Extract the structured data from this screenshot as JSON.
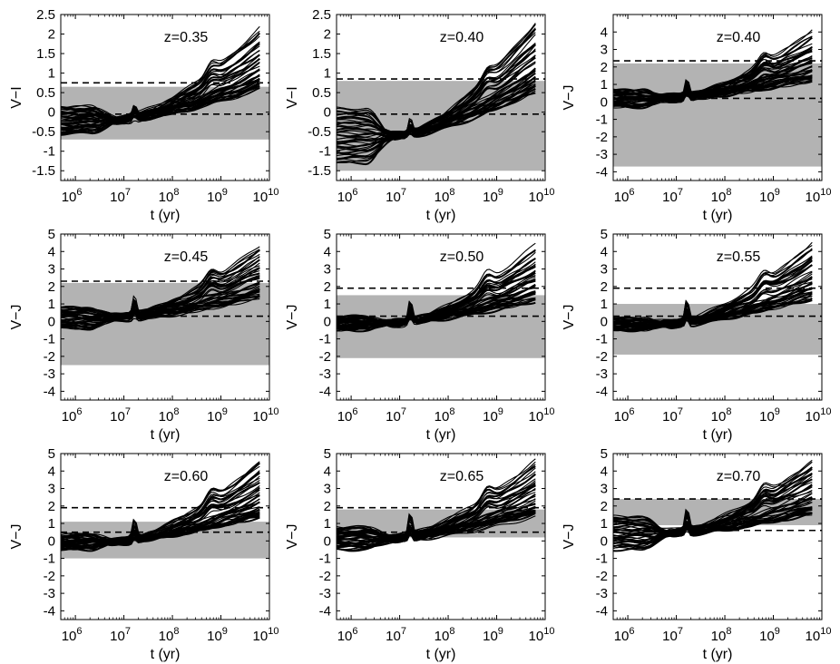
{
  "figure": {
    "description_text": ""
  },
  "chart_data": [
    {
      "type": "line",
      "title": "z=0.35",
      "xlabel": "t (yr)",
      "ylabel": "V−I",
      "xscale": "log",
      "xlim": [
        500000,
        10000000000
      ],
      "ylim": [
        -1.75,
        2.5
      ],
      "yticks": [
        -1.5,
        -1,
        -0.5,
        0,
        0.5,
        1,
        1.5,
        2,
        2.5
      ],
      "ytick_labels": [
        "-1.5",
        "-1",
        "-0.5",
        "0",
        "0.5",
        "1",
        "1.5",
        "2",
        "2.5"
      ],
      "xticks": [
        {
          "b": "10",
          "e": "6"
        },
        {
          "b": "10",
          "e": "7"
        },
        {
          "b": "10",
          "e": "8"
        },
        {
          "b": "10",
          "e": "9"
        },
        {
          "b": "10",
          "e": "10"
        }
      ],
      "band": [
        -0.7,
        0.65
      ],
      "dashed_lines": [
        0.75,
        -0.05
      ],
      "track_start": [
        -0.55,
        0.15
      ],
      "track_end": [
        0.3,
        2.25
      ],
      "bump_height": 0.35,
      "n_tracks": 40
    },
    {
      "type": "line",
      "title": "z=0.40",
      "xlabel": "t (yr)",
      "ylabel": "V−I",
      "xscale": "log",
      "xlim": [
        500000,
        10000000000
      ],
      "ylim": [
        -1.75,
        2.5
      ],
      "yticks": [
        -1.5,
        -1,
        -0.5,
        0,
        0.5,
        1,
        1.5,
        2,
        2.5
      ],
      "ytick_labels": [
        "-1.5",
        "-1",
        "-0.5",
        "0",
        "0.5",
        "1",
        "1.5",
        "2",
        "2.5"
      ],
      "xticks": [
        {
          "b": "10",
          "e": "6"
        },
        {
          "b": "10",
          "e": "7"
        },
        {
          "b": "10",
          "e": "8"
        },
        {
          "b": "10",
          "e": "9"
        },
        {
          "b": "10",
          "e": "10"
        }
      ],
      "band": [
        -1.5,
        0.8
      ],
      "dashed_lines": [
        0.85,
        -0.05
      ],
      "track_start": [
        -1.3,
        0.1
      ],
      "track_end": [
        0.3,
        2.4
      ],
      "bump_height": 0.35,
      "n_tracks": 40
    },
    {
      "type": "line",
      "title": "z=0.40",
      "xlabel": "t (yr)",
      "ylabel": "V−J",
      "xscale": "log",
      "xlim": [
        500000,
        10000000000
      ],
      "ylim": [
        -4.5,
        5
      ],
      "yticks": [
        -4,
        -3,
        -2,
        -1,
        0,
        1,
        2,
        3,
        4
      ],
      "ytick_labels": [
        "-4",
        "-3",
        "-2",
        "-1",
        "0",
        "1",
        "2",
        "3",
        "4"
      ],
      "xticks": [
        {
          "b": "10",
          "e": "6"
        },
        {
          "b": "10",
          "e": "7"
        },
        {
          "b": "10",
          "e": "8"
        },
        {
          "b": "10",
          "e": "9"
        },
        {
          "b": "10",
          "e": "10"
        }
      ],
      "band": [
        -3.7,
        2.2
      ],
      "dashed_lines": [
        2.35,
        0.2
      ],
      "track_start": [
        -0.3,
        0.7
      ],
      "track_end": [
        0.8,
        4.1
      ],
      "bump_height": 0.9,
      "n_tracks": 40
    },
    {
      "type": "line",
      "title": "z=0.45",
      "xlabel": "t (yr)",
      "ylabel": "V−J",
      "xscale": "log",
      "xlim": [
        500000,
        10000000000
      ],
      "ylim": [
        -4.5,
        5
      ],
      "yticks": [
        -4,
        -3,
        -2,
        -1,
        0,
        1,
        2,
        3,
        4,
        5
      ],
      "ytick_labels": [
        "-4",
        "-3",
        "-2",
        "-1",
        "0",
        "1",
        "2",
        "3",
        "4",
        "5"
      ],
      "xticks": [
        {
          "b": "10",
          "e": "6"
        },
        {
          "b": "10",
          "e": "7"
        },
        {
          "b": "10",
          "e": "8"
        },
        {
          "b": "10",
          "e": "9"
        },
        {
          "b": "10",
          "e": "10"
        }
      ],
      "band": [
        -2.5,
        2.2
      ],
      "dashed_lines": [
        2.3,
        0.3
      ],
      "track_start": [
        -0.4,
        0.8
      ],
      "track_end": [
        0.9,
        4.4
      ],
      "bump_height": 1.0,
      "n_tracks": 40
    },
    {
      "type": "line",
      "title": "z=0.50",
      "xlabel": "t (yr)",
      "ylabel": "V−J",
      "xscale": "log",
      "xlim": [
        500000,
        10000000000
      ],
      "ylim": [
        -4.5,
        5
      ],
      "yticks": [
        -4,
        -3,
        -2,
        -1,
        0,
        1,
        2,
        3,
        4,
        5
      ],
      "ytick_labels": [
        "-4",
        "-3",
        "-2",
        "-1",
        "0",
        "1",
        "2",
        "3",
        "4",
        "5"
      ],
      "xticks": [
        {
          "b": "10",
          "e": "6"
        },
        {
          "b": "10",
          "e": "7"
        },
        {
          "b": "10",
          "e": "8"
        },
        {
          "b": "10",
          "e": "9"
        },
        {
          "b": "10",
          "e": "10"
        }
      ],
      "band": [
        -2.1,
        1.5
      ],
      "dashed_lines": [
        1.9,
        0.3
      ],
      "track_start": [
        -0.5,
        0.3
      ],
      "track_end": [
        0.8,
        4.4
      ],
      "bump_height": 1.1,
      "n_tracks": 40
    },
    {
      "type": "line",
      "title": "z=0.55",
      "xlabel": "t (yr)",
      "ylabel": "V−J",
      "xscale": "log",
      "xlim": [
        500000,
        10000000000
      ],
      "ylim": [
        -4.5,
        5
      ],
      "yticks": [
        -4,
        -3,
        -2,
        -1,
        0,
        1,
        2,
        3,
        4,
        5
      ],
      "ytick_labels": [
        "-4",
        "-3",
        "-2",
        "-1",
        "0",
        "1",
        "2",
        "3",
        "4",
        "5"
      ],
      "xticks": [
        {
          "b": "10",
          "e": "6"
        },
        {
          "b": "10",
          "e": "7"
        },
        {
          "b": "10",
          "e": "8"
        },
        {
          "b": "10",
          "e": "9"
        },
        {
          "b": "10",
          "e": "10"
        }
      ],
      "band": [
        -1.9,
        1.0
      ],
      "dashed_lines": [
        1.9,
        0.3
      ],
      "track_start": [
        -0.5,
        0.2
      ],
      "track_end": [
        0.8,
        4.5
      ],
      "bump_height": 1.1,
      "n_tracks": 40
    },
    {
      "type": "line",
      "title": "z=0.60",
      "xlabel": "t (yr)",
      "ylabel": "V−J",
      "xscale": "log",
      "xlim": [
        500000,
        10000000000
      ],
      "ylim": [
        -4.5,
        5
      ],
      "yticks": [
        -4,
        -3,
        -2,
        -1,
        0,
        1,
        2,
        3,
        4,
        5
      ],
      "ytick_labels": [
        "-4",
        "-3",
        "-2",
        "-1",
        "0",
        "1",
        "2",
        "3",
        "4",
        "5"
      ],
      "xticks": [
        {
          "b": "10",
          "e": "6"
        },
        {
          "b": "10",
          "e": "7"
        },
        {
          "b": "10",
          "e": "8"
        },
        {
          "b": "10",
          "e": "9"
        },
        {
          "b": "10",
          "e": "10"
        }
      ],
      "band": [
        -1.0,
        1.1
      ],
      "dashed_lines": [
        1.9,
        0.5
      ],
      "track_start": [
        -0.5,
        0.4
      ],
      "track_end": [
        0.9,
        4.7
      ],
      "bump_height": 1.1,
      "n_tracks": 40
    },
    {
      "type": "line",
      "title": "z=0.65",
      "xlabel": "t (yr)",
      "ylabel": "V−J",
      "xscale": "log",
      "xlim": [
        500000,
        10000000000
      ],
      "ylim": [
        -4.5,
        5
      ],
      "yticks": [
        -4,
        -3,
        -2,
        -1,
        0,
        1,
        2,
        3,
        4,
        5
      ],
      "ytick_labels": [
        "-4",
        "-3",
        "-2",
        "-1",
        "0",
        "1",
        "2",
        "3",
        "4",
        "5"
      ],
      "xticks": [
        {
          "b": "10",
          "e": "6"
        },
        {
          "b": "10",
          "e": "7"
        },
        {
          "b": "10",
          "e": "8"
        },
        {
          "b": "10",
          "e": "9"
        },
        {
          "b": "10",
          "e": "10"
        }
      ],
      "band": [
        0.2,
        1.8
      ],
      "dashed_lines": [
        1.9,
        0.5
      ],
      "track_start": [
        -0.5,
        0.8
      ],
      "track_end": [
        1.0,
        4.7
      ],
      "bump_height": 1.1,
      "n_tracks": 40
    },
    {
      "type": "line",
      "title": "z=0.70",
      "xlabel": "t (yr)",
      "ylabel": "V−J",
      "xscale": "log",
      "xlim": [
        500000,
        10000000000
      ],
      "ylim": [
        -4.5,
        5
      ],
      "yticks": [
        -4,
        -3,
        -2,
        -1,
        0,
        1,
        2,
        3,
        4,
        5
      ],
      "ytick_labels": [
        "-4",
        "-3",
        "-2",
        "-1",
        "0",
        "1",
        "2",
        "3",
        "4",
        "5"
      ],
      "xticks": [
        {
          "b": "10",
          "e": "6"
        },
        {
          "b": "10",
          "e": "7"
        },
        {
          "b": "10",
          "e": "8"
        },
        {
          "b": "10",
          "e": "9"
        },
        {
          "b": "10",
          "e": "10"
        }
      ],
      "band": [
        0.9,
        2.4
      ],
      "dashed_lines": [
        2.4,
        0.6
      ],
      "track_start": [
        -0.5,
        1.4
      ],
      "track_end": [
        1.1,
        4.8
      ],
      "bump_height": 1.2,
      "n_tracks": 40
    }
  ]
}
